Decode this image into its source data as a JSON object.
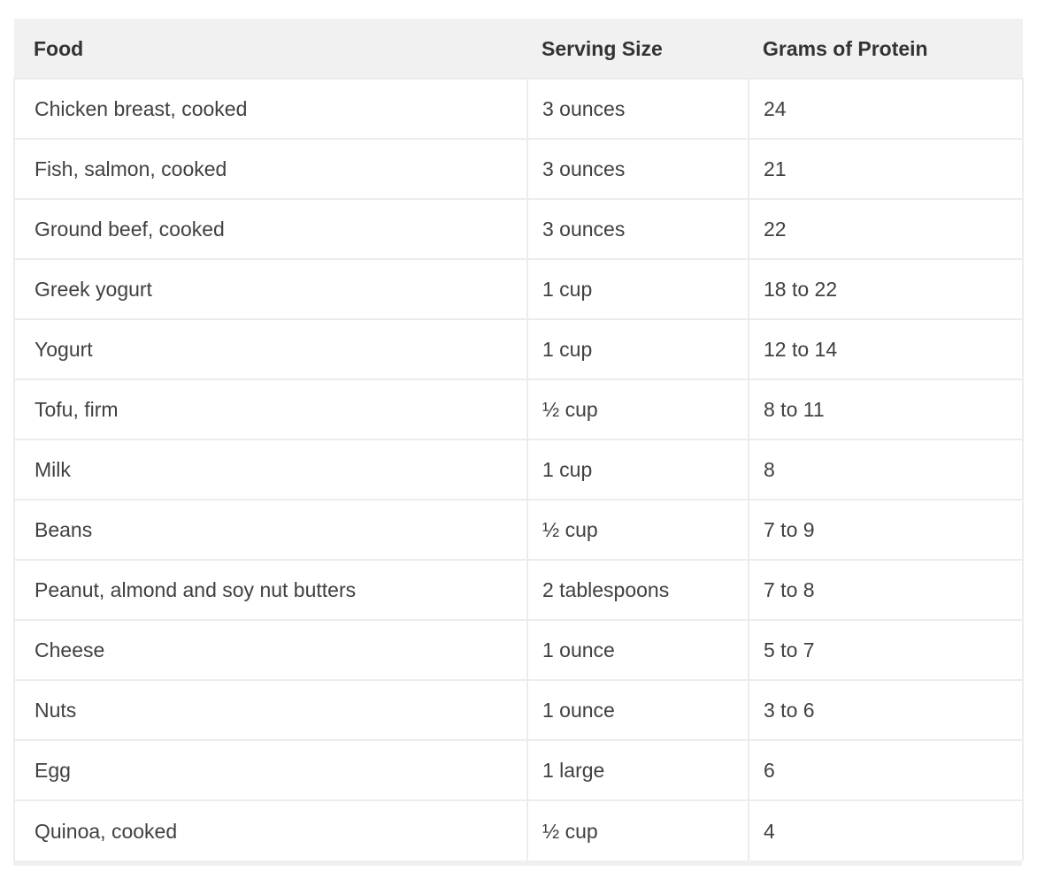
{
  "table": {
    "columns": [
      "Food",
      "Serving Size",
      "Grams of Protein"
    ],
    "rows": [
      {
        "food": "Chicken breast, cooked",
        "serving_size": "3 ounces",
        "grams_of_protein": "24"
      },
      {
        "food": "Fish, salmon, cooked",
        "serving_size": "3 ounces",
        "grams_of_protein": "21"
      },
      {
        "food": "Ground beef, cooked",
        "serving_size": "3 ounces",
        "grams_of_protein": "22"
      },
      {
        "food": "Greek yogurt",
        "serving_size": "1 cup",
        "grams_of_protein": "18 to 22"
      },
      {
        "food": "Yogurt",
        "serving_size": "1 cup",
        "grams_of_protein": "12 to 14"
      },
      {
        "food": "Tofu, firm",
        "serving_size": "½ cup",
        "grams_of_protein": "8 to 11"
      },
      {
        "food": "Milk",
        "serving_size": "1 cup",
        "grams_of_protein": "8"
      },
      {
        "food": "Beans",
        "serving_size": "½ cup",
        "grams_of_protein": "7 to 9"
      },
      {
        "food": "Peanut, almond and soy nut butters",
        "serving_size": "2 tablespoons",
        "grams_of_protein": "7 to 8"
      },
      {
        "food": "Cheese",
        "serving_size": "1 ounce",
        "grams_of_protein": "5 to 7"
      },
      {
        "food": "Nuts",
        "serving_size": "1 ounce",
        "grams_of_protein": "3 to 6"
      },
      {
        "food": "Egg",
        "serving_size": "1 large",
        "grams_of_protein": "6"
      },
      {
        "food": "Quinoa, cooked",
        "serving_size": "½ cup",
        "grams_of_protein": "4"
      }
    ],
    "colors": {
      "header_bg": "#f1f1f1",
      "header_text": "#333333",
      "body_text": "#404040",
      "row_border": "#ececec",
      "bottom_border": "#f0f0f0",
      "row_bg": "#ffffff",
      "page_bg": "#ffffff"
    }
  }
}
